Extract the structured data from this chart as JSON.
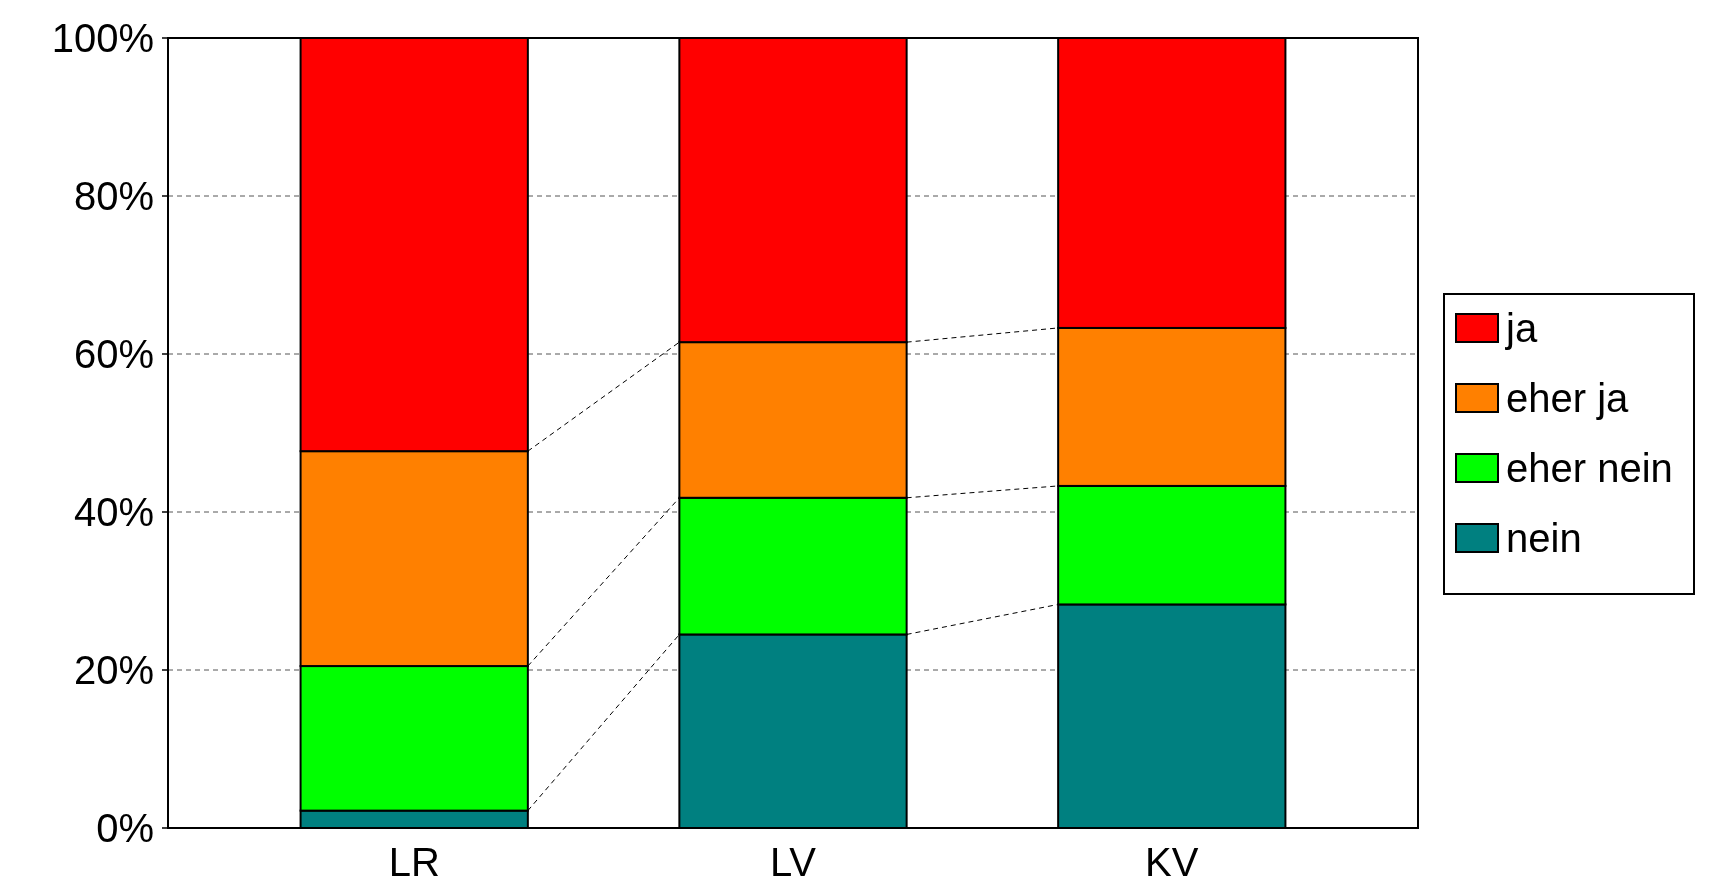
{
  "chart_data": {
    "type": "bar",
    "stacked": true,
    "categories": [
      "LR",
      "LV",
      "KV"
    ],
    "series": [
      {
        "name": "nein",
        "color": "#008080",
        "values": [
          2.2,
          24.5,
          28.3
        ]
      },
      {
        "name": "eher nein",
        "color": "#00ff00",
        "values": [
          18.3,
          17.3,
          15.0
        ]
      },
      {
        "name": "eher ja",
        "color": "#ff8000",
        "values": [
          27.2,
          19.7,
          20.0
        ]
      },
      {
        "name": "ja",
        "color": "#ff0000",
        "values": [
          52.3,
          38.5,
          36.7
        ]
      }
    ],
    "ylim": [
      0,
      100
    ],
    "yticks": [
      {
        "value": 0,
        "label": "0%"
      },
      {
        "value": 20,
        "label": "20%"
      },
      {
        "value": 40,
        "label": "40%"
      },
      {
        "value": 60,
        "label": "60%"
      },
      {
        "value": 80,
        "label": "80%"
      },
      {
        "value": 100,
        "label": "100%"
      }
    ],
    "grid": "y",
    "legend": "right"
  }
}
